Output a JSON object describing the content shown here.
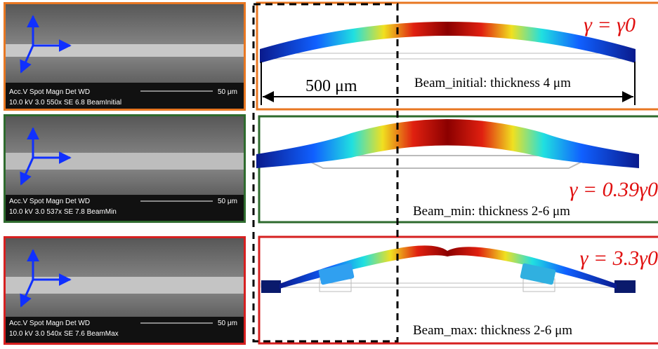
{
  "panels": [
    {
      "sem": {
        "header": "Acc.V  Spot Magn    Det  WD",
        "scale": "50 μm",
        "info": "10.0 kV 3.0   550x    SE  6.8   BeamInitial"
      },
      "beam": {
        "gamma": "γ = γ0",
        "dimension": "500 μm",
        "label": "Beam_initial: thickness 4 μm"
      }
    },
    {
      "sem": {
        "header": "Acc.V  Spot Magn    Det  WD",
        "scale": "50 μm",
        "info": "10.0 kV 3.0   537x    SE  7.8   BeamMin"
      },
      "beam": {
        "gamma": "γ = 0.39γ0",
        "label": "Beam_min: thickness 2-6 μm"
      }
    },
    {
      "sem": {
        "header": "Acc.V  Spot Magn    Det  WD",
        "scale": "50 μm",
        "info": "10.0 kV 3.0   540x    SE  7.6   BeamMax"
      },
      "beam": {
        "gamma": "γ = 3.3γ0",
        "label": "Beam_max: thickness 2-6 μm"
      }
    }
  ]
}
